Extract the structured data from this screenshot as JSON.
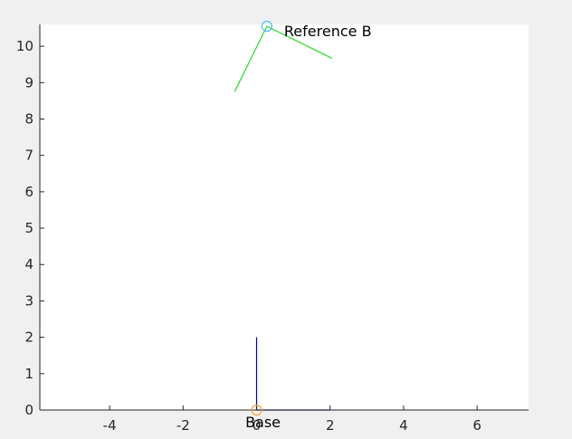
{
  "chart_data": {
    "type": "line",
    "xlim": [
      -5.9,
      7.4
    ],
    "ylim": [
      0,
      10.6
    ],
    "xticks": [
      -4,
      -2,
      0,
      2,
      4,
      6
    ],
    "yticks": [
      0,
      1,
      2,
      3,
      4,
      5,
      6,
      7,
      8,
      9,
      10
    ],
    "grid": false,
    "box": false,
    "series": [
      {
        "role": "base-frame-x-axis",
        "color": "#0000aa",
        "x": [
          0,
          2
        ],
        "y": [
          0,
          0
        ]
      },
      {
        "role": "base-frame-y-axis",
        "color": "#0000aa",
        "x": [
          0,
          0
        ],
        "y": [
          0,
          2
        ]
      },
      {
        "role": "reference-b-frame",
        "color": "#22dd22",
        "x": [
          -0.6,
          0.28,
          2.05
        ],
        "y": [
          8.75,
          10.55,
          9.67
        ]
      }
    ],
    "markers": [
      {
        "label": "Base",
        "x": 0,
        "y": 0,
        "color": "#f0a040",
        "shape": "circle"
      },
      {
        "label": "Reference B",
        "x": 0.28,
        "y": 10.55,
        "color": "#4db8ff",
        "shape": "circle"
      }
    ],
    "colors": {
      "figure_background": "#f0f0f0",
      "axes_background": "#ffffff",
      "axis_color": "#262626"
    }
  }
}
